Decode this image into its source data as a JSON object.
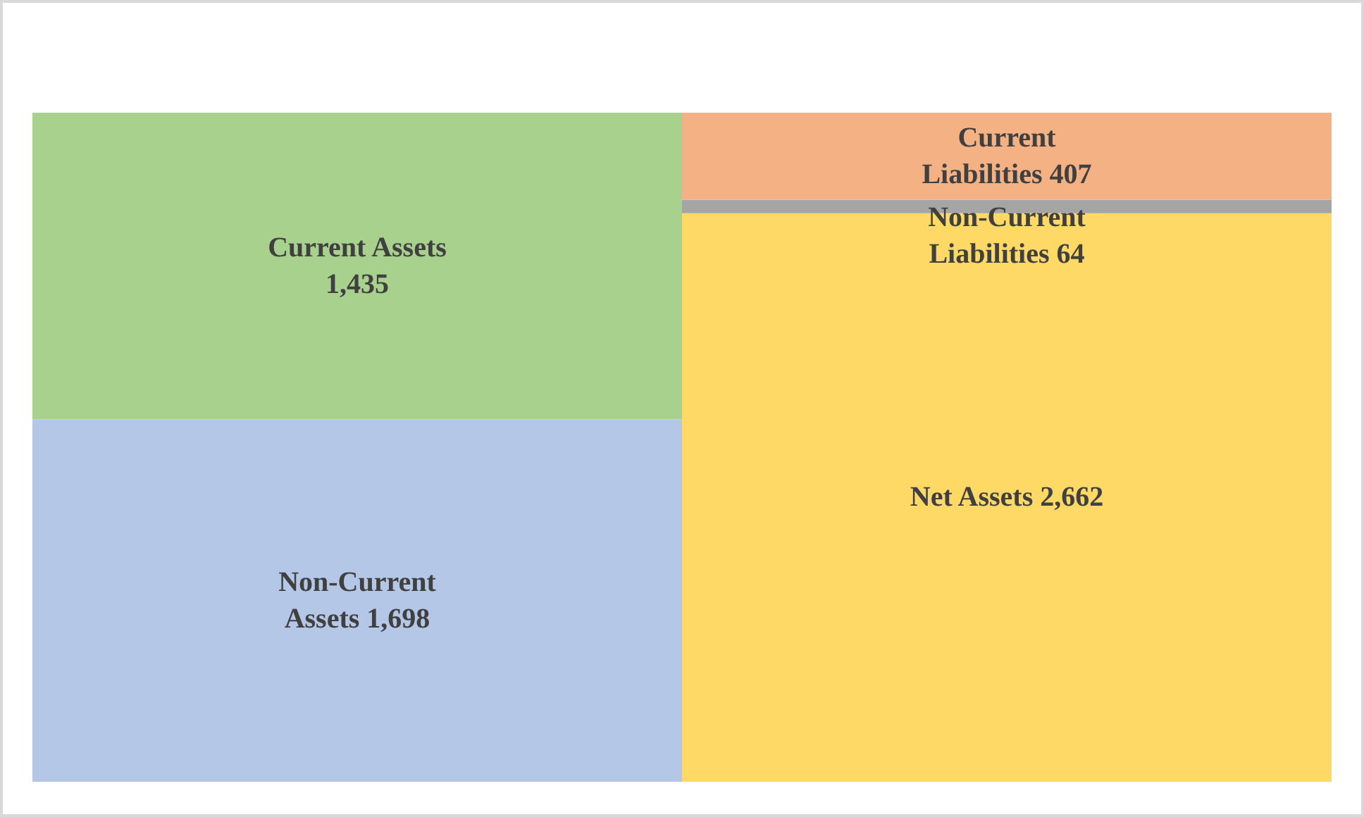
{
  "chart_data": {
    "type": "bar",
    "stacked": true,
    "categories": [
      null,
      null
    ],
    "series": [
      {
        "name": "Non-Current Assets",
        "color": "#b4c7e7",
        "values": [
          1698,
          null
        ],
        "value_labels": [
          "1,698",
          null
        ]
      },
      {
        "name": "Current Assets",
        "color": "#a9d18e",
        "values": [
          1435,
          null
        ],
        "value_labels": [
          "1,435",
          null
        ]
      },
      {
        "name": "Net Assets",
        "color": "#ffd966",
        "values": [
          null,
          2662
        ],
        "value_labels": [
          null,
          "2,662"
        ]
      },
      {
        "name": "Non-Current Liabilities",
        "color": "#a5a5a5",
        "values": [
          null,
          64
        ],
        "value_labels": [
          null,
          "64"
        ]
      },
      {
        "name": "Current Liabilities",
        "color": "#f4b183",
        "values": [
          null,
          407
        ],
        "value_labels": [
          null,
          "407"
        ]
      }
    ]
  }
}
